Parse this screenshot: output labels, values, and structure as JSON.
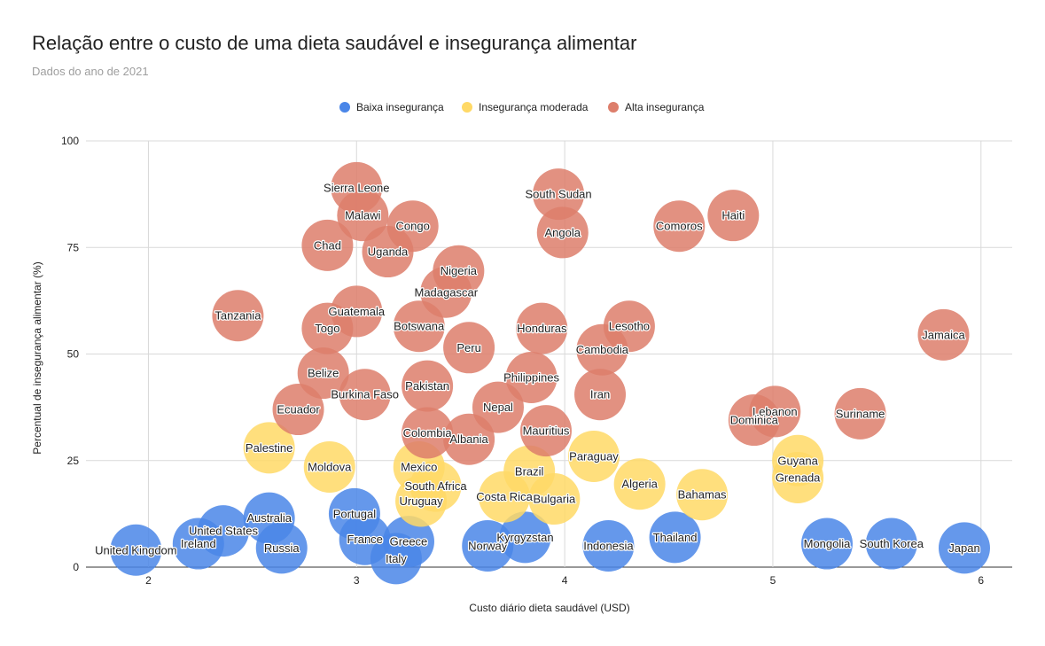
{
  "chart_data": {
    "type": "bubble",
    "title": "Relação entre o custo de uma dieta saudável e insegurança alimentar",
    "subtitle": "Dados do ano de 2021",
    "xlabel": "Custo diário dieta saudável (USD)",
    "ylabel": "Percentual de insegurança alimentar (%)",
    "xlim": [
      1.7,
      6.15
    ],
    "ylim": [
      0,
      100
    ],
    "xticks": [
      "2",
      "3",
      "4",
      "5",
      "6"
    ],
    "yticks": [
      "0",
      "25",
      "50",
      "75",
      "100"
    ],
    "grid": true,
    "legend_position": "top",
    "series": [
      {
        "name": "Baixa insegurança",
        "color": "#4a86e8",
        "points": [
          {
            "label": "United Kingdom",
            "x": 1.94,
            "y": 4.0
          },
          {
            "label": "Ireland",
            "x": 2.24,
            "y": 5.5
          },
          {
            "label": "United States",
            "x": 2.36,
            "y": 8.5
          },
          {
            "label": "Australia",
            "x": 2.58,
            "y": 11.5
          },
          {
            "label": "Russia",
            "x": 2.64,
            "y": 4.5
          },
          {
            "label": "Portugal",
            "x": 2.99,
            "y": 12.5
          },
          {
            "label": "France",
            "x": 3.04,
            "y": 6.5
          },
          {
            "label": "Greece",
            "x": 3.25,
            "y": 6.0
          },
          {
            "label": "Italy",
            "x": 3.19,
            "y": 2.0
          },
          {
            "label": "Norway",
            "x": 3.63,
            "y": 5.0
          },
          {
            "label": "Kyrgyzstan",
            "x": 3.81,
            "y": 7.0
          },
          {
            "label": "Indonesia",
            "x": 4.21,
            "y": 5.0
          },
          {
            "label": "Thailand",
            "x": 4.53,
            "y": 7.0
          },
          {
            "label": "Mongolia",
            "x": 5.26,
            "y": 5.5
          },
          {
            "label": "South Korea",
            "x": 5.57,
            "y": 5.5
          },
          {
            "label": "Japan",
            "x": 5.92,
            "y": 4.5
          }
        ]
      },
      {
        "name": "Insegurança moderada",
        "color": "#ffd966",
        "points": [
          {
            "label": "Palestine",
            "x": 2.58,
            "y": 28.0
          },
          {
            "label": "Moldova",
            "x": 2.87,
            "y": 23.5
          },
          {
            "label": "Mexico",
            "x": 3.3,
            "y": 23.5
          },
          {
            "label": "South Africa",
            "x": 3.38,
            "y": 19.0
          },
          {
            "label": "Uruguay",
            "x": 3.31,
            "y": 15.5
          },
          {
            "label": "Costa Rica",
            "x": 3.71,
            "y": 16.5
          },
          {
            "label": "Brazil",
            "x": 3.83,
            "y": 22.5
          },
          {
            "label": "Bulgaria",
            "x": 3.95,
            "y": 16.0
          },
          {
            "label": "Paraguay",
            "x": 4.14,
            "y": 26.0
          },
          {
            "label": "Algeria",
            "x": 4.36,
            "y": 19.5
          },
          {
            "label": "Bahamas",
            "x": 4.66,
            "y": 17.0
          },
          {
            "label": "Guyana",
            "x": 5.12,
            "y": 25.0
          },
          {
            "label": "Grenada",
            "x": 5.12,
            "y": 21.0
          }
        ]
      },
      {
        "name": "Alta insegurança",
        "color": "#dd7e6b",
        "points": [
          {
            "label": "Sierra Leone",
            "x": 3.0,
            "y": 89.0
          },
          {
            "label": "Malawi",
            "x": 3.03,
            "y": 82.5
          },
          {
            "label": "Congo",
            "x": 3.27,
            "y": 80.0
          },
          {
            "label": "Chad",
            "x": 2.86,
            "y": 75.5
          },
          {
            "label": "Uganda",
            "x": 3.15,
            "y": 74.0
          },
          {
            "label": "Nigeria",
            "x": 3.49,
            "y": 69.5
          },
          {
            "label": "Madagascar",
            "x": 3.43,
            "y": 64.5
          },
          {
            "label": "South Sudan",
            "x": 3.97,
            "y": 87.5
          },
          {
            "label": "Angola",
            "x": 3.99,
            "y": 78.5
          },
          {
            "label": "Comoros",
            "x": 4.55,
            "y": 80.0
          },
          {
            "label": "Haiti",
            "x": 4.81,
            "y": 82.5
          },
          {
            "label": "Tanzania",
            "x": 2.43,
            "y": 59.0
          },
          {
            "label": "Guatemala",
            "x": 3.0,
            "y": 60.0
          },
          {
            "label": "Togo",
            "x": 2.86,
            "y": 56.0
          },
          {
            "label": "Botswana",
            "x": 3.3,
            "y": 56.5
          },
          {
            "label": "Peru",
            "x": 3.54,
            "y": 51.5
          },
          {
            "label": "Honduras",
            "x": 3.89,
            "y": 56.0
          },
          {
            "label": "Lesotho",
            "x": 4.31,
            "y": 56.5
          },
          {
            "label": "Cambodia",
            "x": 4.18,
            "y": 51.0
          },
          {
            "label": "Jamaica",
            "x": 5.82,
            "y": 54.5
          },
          {
            "label": "Belize",
            "x": 2.84,
            "y": 45.5
          },
          {
            "label": "Burkina Faso",
            "x": 3.04,
            "y": 40.5
          },
          {
            "label": "Pakistan",
            "x": 3.34,
            "y": 42.5
          },
          {
            "label": "Philippines",
            "x": 3.84,
            "y": 44.5
          },
          {
            "label": "Iran",
            "x": 4.17,
            "y": 40.5
          },
          {
            "label": "Ecuador",
            "x": 2.72,
            "y": 37.0
          },
          {
            "label": "Nepal",
            "x": 3.68,
            "y": 37.5
          },
          {
            "label": "Colombia",
            "x": 3.34,
            "y": 31.5
          },
          {
            "label": "Albania",
            "x": 3.54,
            "y": 30.0
          },
          {
            "label": "Mauritius",
            "x": 3.91,
            "y": 32.0
          },
          {
            "label": "Lebanon",
            "x": 5.01,
            "y": 36.5
          },
          {
            "label": "Dominica",
            "x": 4.91,
            "y": 34.5
          },
          {
            "label": "Suriname",
            "x": 5.42,
            "y": 36.0
          }
        ]
      }
    ]
  }
}
